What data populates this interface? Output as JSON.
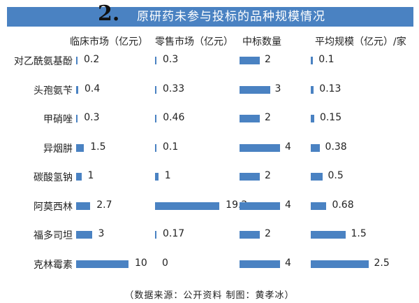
{
  "title_number": "2.",
  "title": "原研药未参与投标的品种规模情况",
  "footer": "（数据来源：公开资料   制图：黄孝冰）",
  "accent_color": "#4a82c2",
  "chart_data": {
    "type": "bar",
    "orientation": "horizontal",
    "categories": [
      "对乙酰氨基酚",
      "头孢氨苄",
      "甲硝唑",
      "异烟肼",
      "碳酸氢钠",
      "阿莫西林",
      "福多司坦",
      "克林霉素"
    ],
    "series": [
      {
        "name": "临床市场（亿元）",
        "values": [
          0.2,
          0.4,
          0.3,
          1.5,
          1,
          2.7,
          3,
          10
        ],
        "labels": [
          "0.2",
          "0.4",
          "0.3",
          "1.5",
          "1",
          "2.7",
          "3",
          "10"
        ]
      },
      {
        "name": "零售市场（亿元）",
        "values": [
          0.3,
          0.33,
          0.46,
          0.1,
          1,
          19.2,
          0.17,
          0
        ],
        "labels": [
          "0.3",
          "0.33",
          "0.46",
          "0.1",
          "1",
          "19.2",
          "0.17",
          "0"
        ]
      },
      {
        "name": "中标数量",
        "values": [
          2,
          3,
          2,
          4,
          2,
          4,
          2,
          4
        ],
        "labels": [
          "2",
          "3",
          "2",
          "4",
          "2",
          "4",
          "2",
          "4"
        ]
      },
      {
        "name": "平均规模（亿元）/家",
        "values": [
          0.1,
          0.13,
          0.15,
          0.38,
          0.5,
          0.68,
          1.5,
          2.5
        ],
        "labels": [
          "0.1",
          "0.13",
          "0.15",
          "0.38",
          "0.5",
          "0.68",
          "1.5",
          "2.5"
        ]
      }
    ]
  }
}
